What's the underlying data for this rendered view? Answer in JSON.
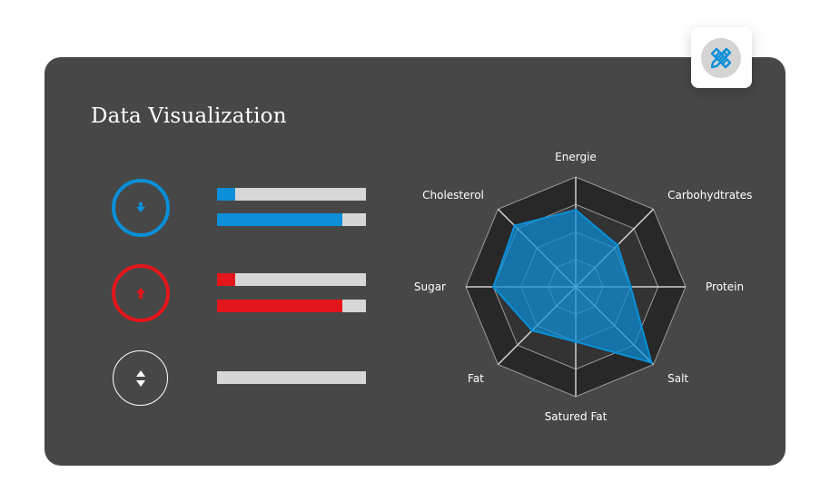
{
  "title": "Data Visualization",
  "colors": {
    "card": "#474747",
    "blue": "#0a8fd8",
    "red": "#e3161b",
    "track": "#d6d6d6"
  },
  "icons": {
    "badge": "pencil-ruler-icon",
    "down": "arrow-down-icon",
    "up": "arrow-up-icon",
    "updown": "arrows-up-down-icon"
  },
  "rows": [
    {
      "name": "decrease",
      "ring_color": "#0a8fd8",
      "icon": "arrow-down",
      "bars": [
        {
          "fill": 0.12,
          "color": "#0a8fd8"
        },
        {
          "fill": 0.84,
          "color": "#0a8fd8"
        }
      ]
    },
    {
      "name": "increase",
      "ring_color": "#e3161b",
      "icon": "arrow-up",
      "bars": [
        {
          "fill": 0.12,
          "color": "#e3161b"
        },
        {
          "fill": 0.84,
          "color": "#e3161b"
        }
      ]
    },
    {
      "name": "neutral",
      "ring_color": "#ffffff",
      "icon": "arrow-up-down",
      "bars": [
        {
          "fill": 0,
          "color": "#d6d6d6"
        }
      ]
    }
  ],
  "chart_data": {
    "type": "radar",
    "axes": [
      "Energie",
      "Carbohydtrates",
      "Protein",
      "Salt",
      "Satured Fat",
      "Fat",
      "Sugar",
      "Cholesterol"
    ],
    "levels": 4,
    "max": 4,
    "series": [
      {
        "values": [
          2.8,
          2.15,
          2.0,
          3.9,
          2.0,
          2.25,
          3.0,
          3.15
        ],
        "color": "#0a8fd8"
      }
    ]
  }
}
